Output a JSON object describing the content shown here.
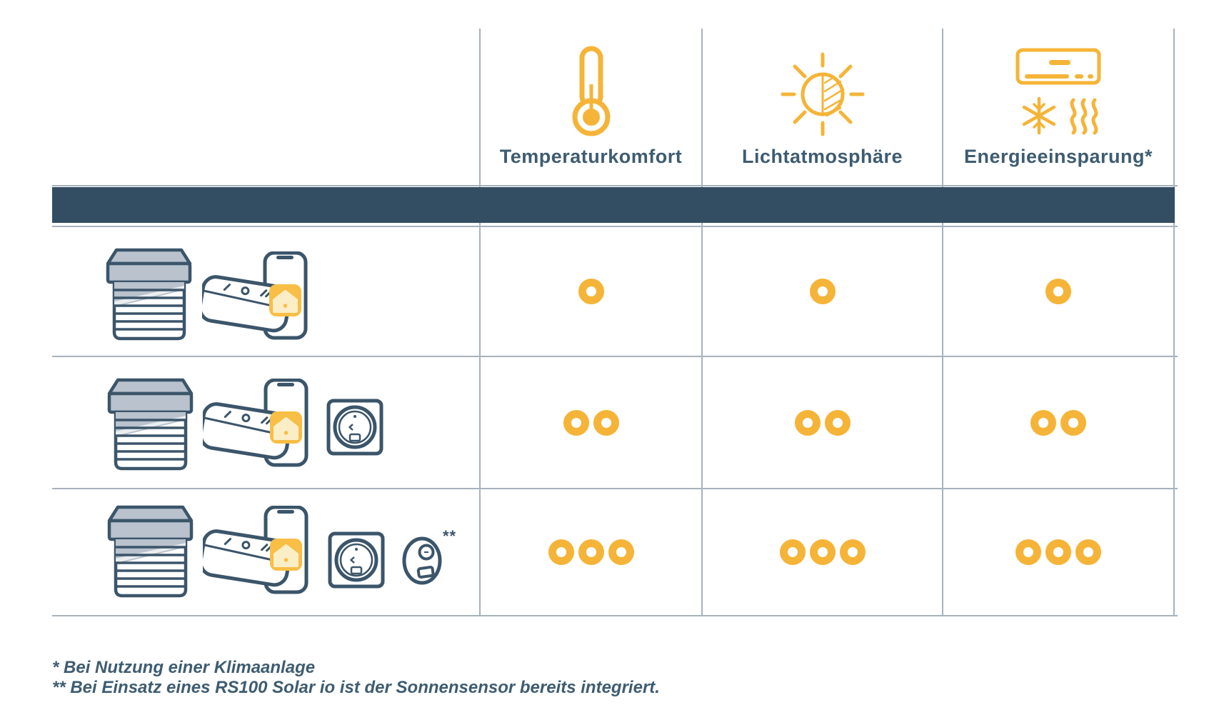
{
  "table": {
    "criteria_columns": [
      {
        "label": "Temperaturkomfort",
        "icon": "thermometer-icon"
      },
      {
        "label": "Lichtatmosphäre",
        "icon": "sun-half-shaded-icon"
      },
      {
        "label": "Energieeinsparung*",
        "icon": "air-conditioner-icon"
      }
    ],
    "rows": [
      {
        "products": [
          "roller-shutter",
          "remote-control-and-smartphone-app"
        ],
        "ratings": [
          1,
          1,
          1
        ]
      },
      {
        "products": [
          "roller-shutter",
          "remote-control-and-smartphone-app",
          "wall-thermostat-sensor"
        ],
        "ratings": [
          2,
          2,
          2
        ]
      },
      {
        "products": [
          "roller-shutter",
          "remote-control-and-smartphone-app",
          "wall-thermostat-sensor",
          "sun-sensor"
        ],
        "sun_sensor_marker": "**",
        "ratings": [
          3,
          3,
          3
        ]
      }
    ]
  },
  "footnotes": [
    "* Bei Nutzung einer Klimaanlage",
    "** Bei Einsatz eines RS100 Solar io ist der Sonnensensor bereits integriert."
  ],
  "colors": {
    "accent_yellow": "#F5B438",
    "dark_slate": "#3B556A",
    "bar_fill": "#334E62",
    "grid_line": "#A6B2BC",
    "text": "#3E5C71"
  }
}
